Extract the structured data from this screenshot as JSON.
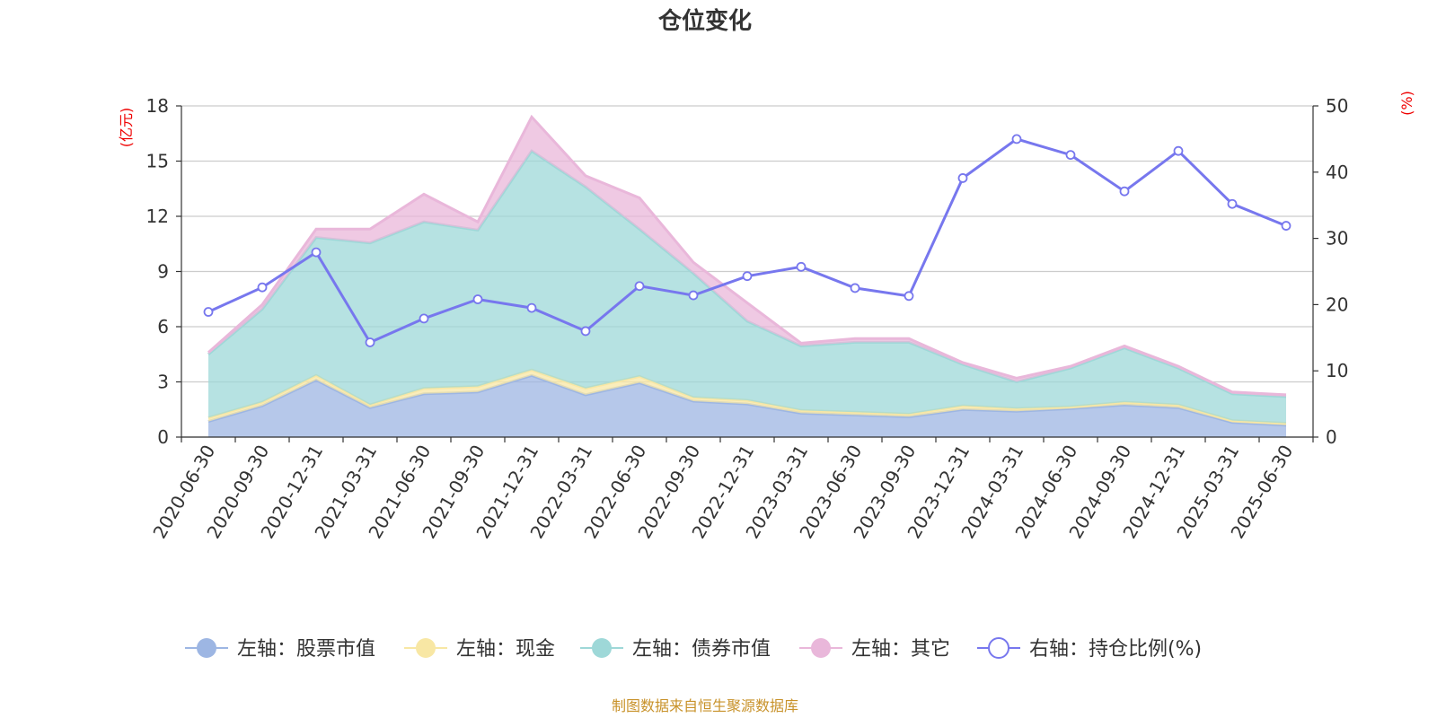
{
  "chart_data": {
    "type": "area",
    "title": "仓位变化",
    "source": "制图数据来自恒生聚源数据库",
    "left_axis": {
      "unit": "(亿元)",
      "ylim": [
        0,
        18
      ],
      "ticks": [
        "0",
        "3",
        "6",
        "9",
        "12",
        "15",
        "18"
      ]
    },
    "right_axis": {
      "unit": "(%)",
      "ylim": [
        0,
        50
      ],
      "ticks": [
        "0",
        "10",
        "20",
        "30",
        "40",
        "50"
      ]
    },
    "grid": true,
    "legend_position": "bottom",
    "categories": [
      "2020-06-30",
      "2020-09-30",
      "2020-12-31",
      "2021-03-31",
      "2021-06-30",
      "2021-09-30",
      "2021-12-31",
      "2022-03-31",
      "2022-06-30",
      "2022-09-30",
      "2022-12-31",
      "2023-03-31",
      "2023-06-30",
      "2023-09-30",
      "2023-12-31",
      "2024-03-31",
      "2024-06-30",
      "2024-09-30",
      "2024-12-31",
      "2025-03-31",
      "2025-06-30"
    ],
    "series": [
      {
        "name": "左轴：股票市值",
        "axis": "left",
        "kind": "stacked-area",
        "color": "#9db6e3",
        "values": [
          0.85,
          1.7,
          3.1,
          1.6,
          2.35,
          2.45,
          3.35,
          2.3,
          2.95,
          1.95,
          1.8,
          1.3,
          1.2,
          1.1,
          1.5,
          1.4,
          1.55,
          1.75,
          1.6,
          0.8,
          0.65
        ]
      },
      {
        "name": "左轴：现金",
        "axis": "left",
        "kind": "stacked-area",
        "color": "#f8e7a4",
        "values": [
          0.2,
          0.2,
          0.25,
          0.15,
          0.3,
          0.3,
          0.3,
          0.35,
          0.35,
          0.2,
          0.2,
          0.15,
          0.15,
          0.15,
          0.2,
          0.15,
          0.1,
          0.15,
          0.15,
          0.1,
          0.1
        ]
      },
      {
        "name": "左轴：债券市值",
        "axis": "left",
        "kind": "stacked-area",
        "color": "#9ed8d8",
        "values": [
          3.45,
          5.05,
          7.5,
          8.8,
          9.05,
          8.5,
          11.9,
          10.95,
          8.0,
          6.75,
          4.3,
          3.5,
          3.8,
          3.9,
          2.25,
          1.45,
          2.1,
          2.95,
          2.0,
          1.45,
          1.45
        ]
      },
      {
        "name": "左轴：其它",
        "axis": "left",
        "kind": "stacked-area",
        "color": "#e9b7da",
        "values": [
          0.1,
          0.25,
          0.45,
          0.75,
          1.5,
          0.45,
          1.85,
          0.6,
          1.7,
          0.6,
          1.0,
          0.15,
          0.2,
          0.2,
          0.1,
          0.2,
          0.1,
          0.1,
          0.1,
          0.1,
          0.1
        ]
      },
      {
        "name": "右轴：持仓比例(%)",
        "axis": "right",
        "kind": "line",
        "color": "#7777ee",
        "values": [
          18.9,
          22.6,
          27.9,
          14.3,
          17.9,
          20.8,
          19.5,
          16.0,
          22.8,
          21.4,
          24.3,
          25.7,
          22.5,
          21.3,
          39.1,
          45.0,
          42.6,
          37.1,
          43.2,
          35.2,
          31.9
        ]
      }
    ]
  }
}
